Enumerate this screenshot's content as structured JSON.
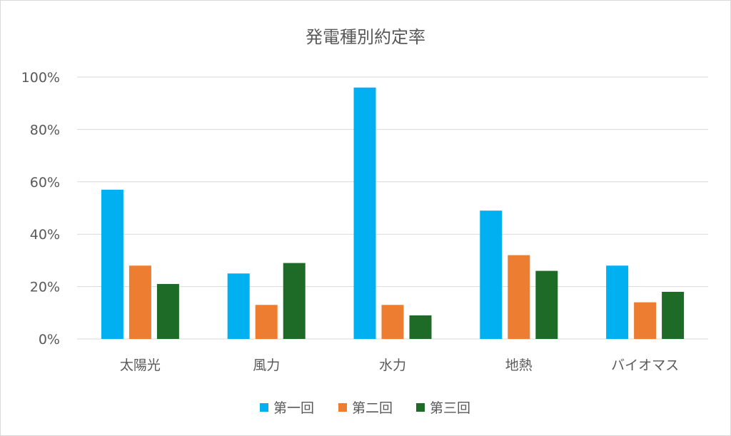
{
  "chart_data": {
    "type": "bar",
    "title": "発電種別約定率",
    "categories": [
      "太陽光",
      "風力",
      "水力",
      "地熱",
      "バイオマス"
    ],
    "series": [
      {
        "name": "第一回",
        "color": "#00b0f0",
        "values": [
          57,
          25,
          96,
          49,
          28
        ]
      },
      {
        "name": "第二回",
        "color": "#ed7d31",
        "values": [
          28,
          13,
          13,
          32,
          14
        ]
      },
      {
        "name": "第三回",
        "color": "#1e6b28",
        "values": [
          21,
          29,
          9,
          26,
          18
        ]
      }
    ],
    "y_unit": "%",
    "ylim": [
      0,
      100
    ],
    "y_ticks": [
      "0%",
      "20%",
      "40%",
      "60%",
      "80%",
      "100%"
    ],
    "grid": true,
    "legend_position": "bottom"
  }
}
